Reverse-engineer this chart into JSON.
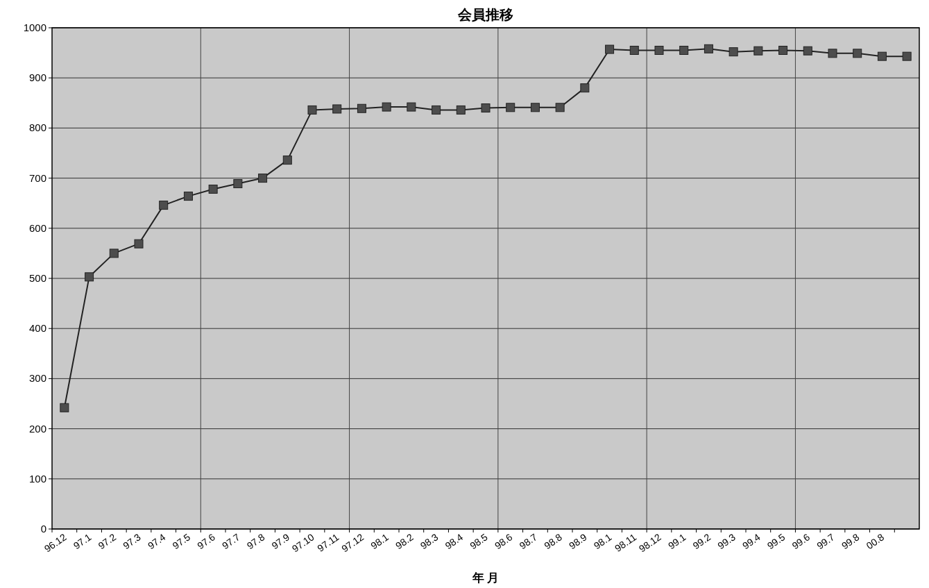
{
  "chart_data": {
    "type": "line",
    "title": "会員推移",
    "xlabel": "年 月",
    "categories": [
      "96.12",
      "97.1",
      "97.2",
      "97.3",
      "97.4",
      "97.5",
      "97.6",
      "97.7",
      "97.8",
      "97.9",
      "97.10",
      "97.11",
      "97.12",
      "98.1",
      "98.2",
      "98.3",
      "98.4",
      "98.5",
      "98.6",
      "98.7",
      "98.8",
      "98.9",
      "98.1",
      "98.11",
      "98.12",
      "99.1",
      "99.2",
      "99.3",
      "99.4",
      "99.5",
      "99.6",
      "99.7",
      "99.8",
      "00.8",
      null
    ],
    "values": [
      242,
      503,
      550,
      569,
      646,
      664,
      678,
      689,
      700,
      736,
      836,
      838,
      839,
      842,
      842,
      836,
      836,
      840,
      841,
      841,
      841,
      880,
      957,
      955,
      955,
      955,
      958,
      952,
      954,
      955,
      954,
      949,
      949,
      943,
      943
    ],
    "color": "#4d4d4d",
    "marker": "square",
    "line_style": "solid",
    "ylim": [
      0,
      1000
    ],
    "yticks": [
      0,
      100,
      200,
      300,
      400,
      500,
      600,
      700,
      800,
      900,
      1000
    ],
    "grid": true
  }
}
